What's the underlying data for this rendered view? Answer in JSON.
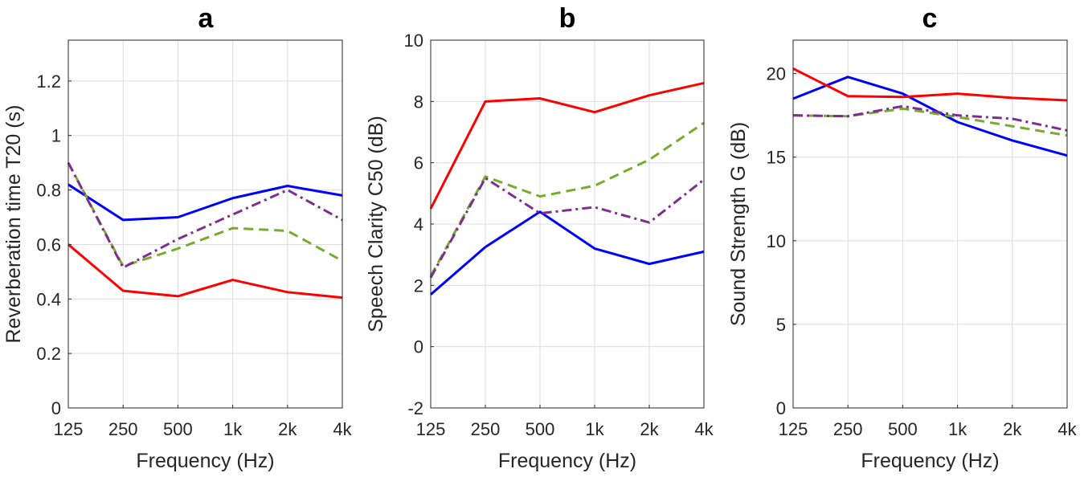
{
  "chart_data": [
    {
      "type": "line",
      "title": "a",
      "xlabel": "Frequency (Hz)",
      "ylabel": "Reverberation time T20 (s)",
      "categories": [
        "125",
        "250",
        "500",
        "1k",
        "2k",
        "4k"
      ],
      "ylim": [
        0,
        1.35
      ],
      "yticks": [
        0,
        0.2,
        0.4,
        0.6,
        0.8,
        1,
        1.2
      ],
      "ytick_labels": [
        "0",
        "0.2",
        "0.4",
        "0.6",
        "0.8",
        "1",
        "1.2"
      ],
      "grid": true,
      "series": [
        {
          "name": "blue",
          "color": "#0000FF",
          "style": "solid",
          "values": [
            0.82,
            0.69,
            0.7,
            0.77,
            0.815,
            0.78
          ]
        },
        {
          "name": "red",
          "color": "#FF0000",
          "style": "solid",
          "values": [
            0.6,
            0.43,
            0.41,
            0.47,
            0.425,
            0.405
          ]
        },
        {
          "name": "green",
          "color": "#77AC30",
          "style": "dashed",
          "values": [
            0.9,
            0.52,
            0.585,
            0.66,
            0.65,
            0.54
          ]
        },
        {
          "name": "purple",
          "color": "#7E2F8E",
          "style": "dashdot",
          "values": [
            0.9,
            0.515,
            0.62,
            0.71,
            0.8,
            0.69
          ]
        }
      ]
    },
    {
      "type": "line",
      "title": "b",
      "xlabel": "Frequency (Hz)",
      "ylabel": "Speech Clarity C50 (dB)",
      "categories": [
        "125",
        "250",
        "500",
        "1k",
        "2k",
        "4k"
      ],
      "ylim": [
        -2,
        10
      ],
      "yticks": [
        -2,
        0,
        2,
        4,
        6,
        8,
        10
      ],
      "ytick_labels": [
        "-2",
        "0",
        "2",
        "4",
        "6",
        "8",
        "10"
      ],
      "grid": true,
      "series": [
        {
          "name": "blue",
          "color": "#0000FF",
          "style": "solid",
          "values": [
            1.7,
            3.25,
            4.4,
            3.2,
            2.7,
            3.1
          ]
        },
        {
          "name": "red",
          "color": "#FF0000",
          "style": "solid",
          "values": [
            4.5,
            8.0,
            8.1,
            7.65,
            8.2,
            8.6
          ]
        },
        {
          "name": "green",
          "color": "#77AC30",
          "style": "dashed",
          "values": [
            2.3,
            5.55,
            4.9,
            5.25,
            6.1,
            7.3
          ]
        },
        {
          "name": "purple",
          "color": "#7E2F8E",
          "style": "dashdot",
          "values": [
            2.25,
            5.5,
            4.35,
            4.55,
            4.05,
            5.45
          ]
        }
      ]
    },
    {
      "type": "line",
      "title": "c",
      "xlabel": "Frequency (Hz)",
      "ylabel": "Sound Strength G (dB)",
      "categories": [
        "125",
        "250",
        "500",
        "1k",
        "2k",
        "4k"
      ],
      "ylim": [
        0,
        22
      ],
      "yticks": [
        0,
        5,
        10,
        15,
        20
      ],
      "ytick_labels": [
        "0",
        "5",
        "10",
        "15",
        "20"
      ],
      "grid": true,
      "series": [
        {
          "name": "blue",
          "color": "#0000FF",
          "style": "solid",
          "values": [
            18.5,
            19.8,
            18.8,
            17.1,
            16.0,
            15.1
          ]
        },
        {
          "name": "red",
          "color": "#FF0000",
          "style": "solid",
          "values": [
            20.3,
            18.65,
            18.6,
            18.8,
            18.55,
            18.4
          ]
        },
        {
          "name": "green",
          "color": "#77AC30",
          "style": "dashed",
          "values": [
            17.5,
            17.45,
            17.9,
            17.4,
            16.85,
            16.3
          ]
        },
        {
          "name": "purple",
          "color": "#7E2F8E",
          "style": "dashdot",
          "values": [
            17.5,
            17.45,
            18.05,
            17.5,
            17.3,
            16.6
          ]
        }
      ]
    }
  ]
}
